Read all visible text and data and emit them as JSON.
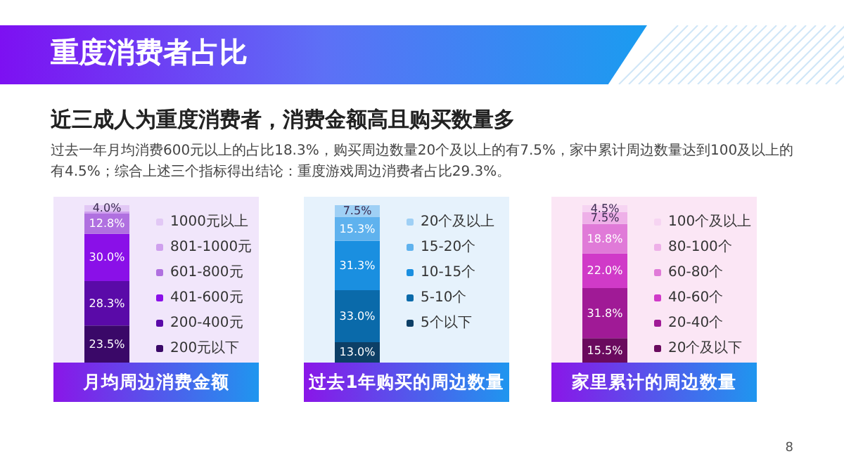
{
  "chart_data": [
    {
      "type": "other",
      "title": "重度消费者占比",
      "subtitle": "近三成人为重度消费者，消费金额高且购买数量多",
      "annotations": [
        "过去一年月均消费600元以上的占比18.3%，购买周边数量20个及以上的有7.5%，家中累计周边数量达到100及以上的有4.5%；综合上述三个指标得出结论：重度游戏周边消费者占比29.3%。",
        "8"
      ]
    },
    {
      "type": "bar",
      "stacked": true,
      "xlabel": "月均周边消费金额",
      "categories": [
        null
      ],
      "ylim": [
        0,
        100
      ],
      "tick_labels": false,
      "legend": "right",
      "series": [
        {
          "name": "200元以下",
          "color": "#3a0868",
          "values": [
            23.5
          ],
          "value_labels": [
            "23.5%"
          ]
        },
        {
          "name": "200-400元",
          "color": "#5a0aa8",
          "values": [
            28.3
          ],
          "value_labels": [
            "28.3%"
          ]
        },
        {
          "name": "401-600元",
          "color": "#8a10e8",
          "values": [
            30.0
          ],
          "value_labels": [
            "30.0%"
          ]
        },
        {
          "name": "601-800元",
          "color": "#b070e0",
          "values": [
            12.8
          ],
          "value_labels": [
            "12.8%"
          ]
        },
        {
          "name": "801-1000元",
          "color": "#cfa0ee",
          "values": [
            1.5
          ],
          "value_labels": [
            null
          ]
        },
        {
          "name": "1000元以上",
          "color": "#e2c8f5",
          "values": [
            4.0
          ],
          "value_labels": [
            "4.0%"
          ]
        }
      ]
    },
    {
      "type": "bar",
      "stacked": true,
      "xlabel": "过去1年购买的周边数量",
      "categories": [
        null
      ],
      "ylim": [
        0,
        100
      ],
      "tick_labels": false,
      "legend": "right",
      "series": [
        {
          "name": "5个以下",
          "color": "#0d3f66",
          "values": [
            13.0
          ],
          "value_labels": [
            "13.0%"
          ]
        },
        {
          "name": "5-10个",
          "color": "#0a6aaa",
          "values": [
            33.0
          ],
          "value_labels": [
            "33.0%"
          ]
        },
        {
          "name": "10-15个",
          "color": "#1a8fe0",
          "values": [
            31.3
          ],
          "value_labels": [
            "31.3%"
          ]
        },
        {
          "name": "15-20个",
          "color": "#5fb2ee",
          "values": [
            15.3
          ],
          "value_labels": [
            "15.3%"
          ]
        },
        {
          "name": "20个及以上",
          "color": "#9fd0f5",
          "values": [
            7.5
          ],
          "value_labels": [
            "7.5%"
          ]
        }
      ]
    },
    {
      "type": "bar",
      "stacked": true,
      "xlabel": "家里累计的周边数量",
      "categories": [
        null
      ],
      "ylim": [
        0,
        100
      ],
      "tick_labels": false,
      "legend": "right",
      "series": [
        {
          "name": "20个及以下",
          "color": "#6a0a5e",
          "values": [
            15.5
          ],
          "value_labels": [
            "15.5%"
          ]
        },
        {
          "name": "20-40个",
          "color": "#a01a96",
          "values": [
            31.8
          ],
          "value_labels": [
            "31.8%"
          ]
        },
        {
          "name": "40-60个",
          "color": "#d03ac8",
          "values": [
            22.0
          ],
          "value_labels": [
            "22.0%"
          ]
        },
        {
          "name": "60-80个",
          "color": "#e07ad8",
          "values": [
            18.8
          ],
          "value_labels": [
            "18.8%"
          ]
        },
        {
          "name": "80-100个",
          "color": "#eeb0e8",
          "values": [
            7.5
          ],
          "value_labels": [
            "7.5%"
          ]
        },
        {
          "name": "100个及以上",
          "color": "#f6d4f2",
          "values": [
            4.5
          ],
          "value_labels": [
            "4.5%"
          ]
        }
      ]
    }
  ]
}
